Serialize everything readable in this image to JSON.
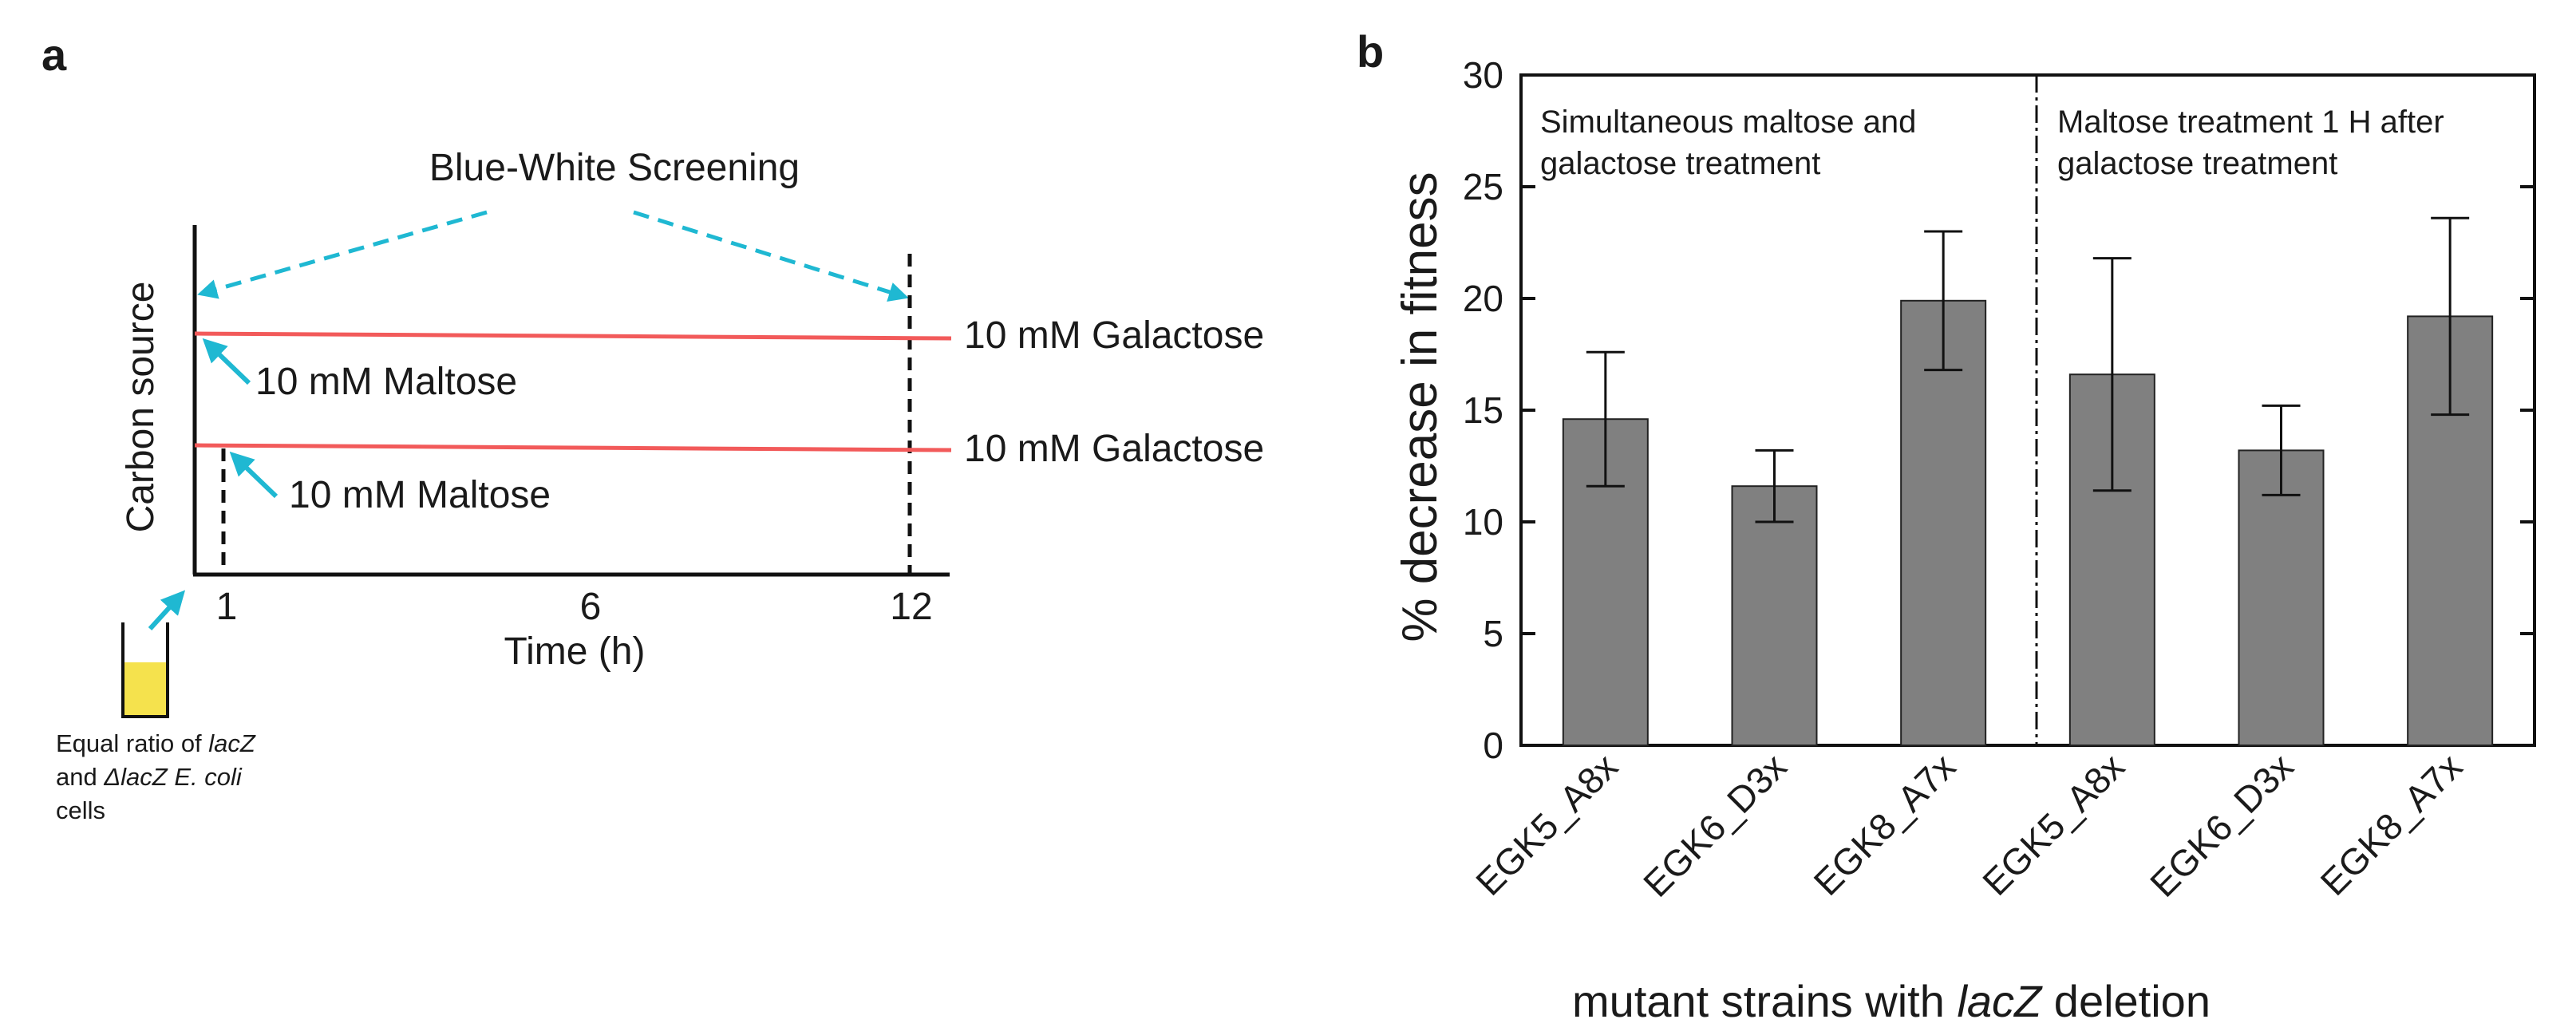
{
  "panel_a": {
    "letter": "a",
    "title": "Blue-White Screening",
    "y_label": "Carbon source",
    "x_label": "Time (h)",
    "x_ticks": [
      "1",
      "6",
      "12"
    ],
    "line1_end_label": "10 mM Galactose",
    "line1_start_label": "10 mM Maltose",
    "line2_end_label": "10 mM Galactose",
    "line2_start_label": "10 mM Maltose",
    "tube_caption_l1_a": "Equal ratio of ",
    "tube_caption_l1_b": "lacZ",
    "tube_caption_l2_a": "and ",
    "tube_caption_l2_b": "ΔlacZ E. coli",
    "tube_caption_l3": "cells",
    "colors": {
      "line": "#f25a5a",
      "arrow": "#1fb8d2",
      "liquid": "#f5e24d"
    }
  },
  "panel_b": {
    "letter": "b",
    "group1_label_l1": "Simultaneous maltose and",
    "group1_label_l2": "galactose treatment",
    "group2_label_l1": "Maltose treatment 1 H after",
    "group2_label_l2": "galactose treatment",
    "xlabel_a": "mutant strains with ",
    "xlabel_b": "lacZ",
    "xlabel_c": "  deletion"
  },
  "chart_data": {
    "type": "bar",
    "title": "",
    "ylabel": "% decrease in fitness",
    "xlabel": "mutant strains with lacZ deletion",
    "ylim": [
      0,
      30
    ],
    "yticks": [
      0,
      5,
      10,
      15,
      20,
      25,
      30
    ],
    "categories": [
      "EGK5_A8x",
      "EGK6_D3x",
      "EGK8_A7x",
      "EGK5_A8x",
      "EGK6_D3x",
      "EGK8_A7x"
    ],
    "values": [
      14.6,
      11.6,
      19.9,
      16.6,
      13.2,
      19.2
    ],
    "errors": [
      3.0,
      1.6,
      3.1,
      5.2,
      2.0,
      4.4
    ],
    "bar_color": "#808080"
  }
}
